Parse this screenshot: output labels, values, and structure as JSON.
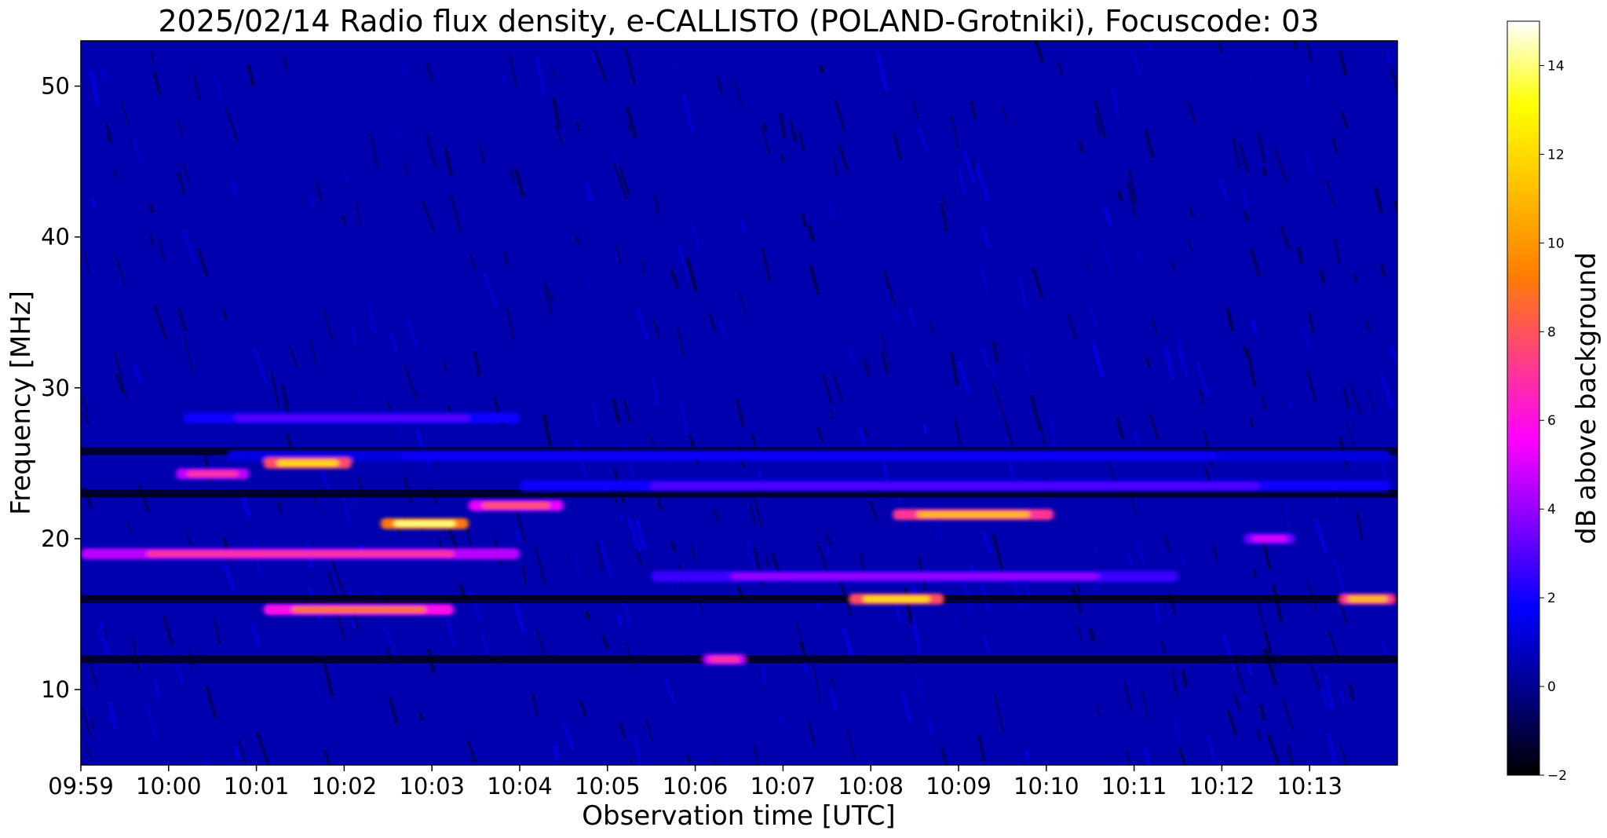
{
  "chart_data": {
    "type": "heatmap",
    "title": "2025/02/14  Radio flux density, e-CALLISTO (POLAND-Grotniki), Focuscode: 03",
    "xlabel": "Observation time [UTC]",
    "ylabel": "Frequency [MHz]",
    "x_ticks": [
      "09:59",
      "10:00",
      "10:01",
      "10:02",
      "10:03",
      "10:04",
      "10:05",
      "10:06",
      "10:07",
      "10:08",
      "10:09",
      "10:10",
      "10:11",
      "10:12",
      "10:13"
    ],
    "xlim": [
      "09:59",
      "10:14"
    ],
    "y_ticks": [
      10,
      20,
      30,
      40,
      50
    ],
    "ylim": [
      5,
      53
    ],
    "colorbar": {
      "label": "dB above background",
      "ticks": [
        -2,
        0,
        2,
        4,
        6,
        8,
        10,
        12,
        14
      ],
      "range": [
        -2,
        15
      ],
      "colormap": [
        "#000000",
        "#000087",
        "#0000ff",
        "#8000ff",
        "#ff00ff",
        "#ff4080",
        "#ff8000",
        "#ffc000",
        "#ffff00",
        "#ffffff"
      ]
    },
    "background_level_db": 0.5,
    "bands": [
      {
        "freq_mhz": 28.0,
        "start": "10:00:10",
        "end": "10:04:00",
        "peak_db": 3
      },
      {
        "freq_mhz": 25.5,
        "start": "10:00:40",
        "end": "10:13:55",
        "peak_db": 2
      },
      {
        "freq_mhz": 25.0,
        "start": "10:01:05",
        "end": "10:02:05",
        "peak_db": 12
      },
      {
        "freq_mhz": 24.3,
        "start": "10:00:05",
        "end": "10:00:55",
        "peak_db": 7
      },
      {
        "freq_mhz": 23.5,
        "start": "10:04:00",
        "end": "10:13:55",
        "peak_db": 3
      },
      {
        "freq_mhz": 22.2,
        "start": "10:03:25",
        "end": "10:04:30",
        "peak_db": 8
      },
      {
        "freq_mhz": 21.0,
        "start": "10:02:25",
        "end": "10:03:25",
        "peak_db": 14
      },
      {
        "freq_mhz": 21.6,
        "start": "10:08:15",
        "end": "10:10:05",
        "peak_db": 11
      },
      {
        "freq_mhz": 20.0,
        "start": "10:12:15",
        "end": "10:12:50",
        "peak_db": 5
      },
      {
        "freq_mhz": 19.0,
        "start": "09:59:00",
        "end": "10:04:00",
        "peak_db": 7
      },
      {
        "freq_mhz": 17.5,
        "start": "10:05:30",
        "end": "10:11:30",
        "peak_db": 4
      },
      {
        "freq_mhz": 16.0,
        "start": "10:07:45",
        "end": "10:08:50",
        "peak_db": 12
      },
      {
        "freq_mhz": 16.0,
        "start": "10:13:20",
        "end": "10:13:59",
        "peak_db": 11
      },
      {
        "freq_mhz": 15.3,
        "start": "10:01:05",
        "end": "10:03:15",
        "peak_db": 9
      },
      {
        "freq_mhz": 12.0,
        "start": "10:06:05",
        "end": "10:06:35",
        "peak_db": 7
      }
    ],
    "dark_lanes_mhz": [
      25.8,
      23.0,
      16.0,
      12.0
    ]
  }
}
